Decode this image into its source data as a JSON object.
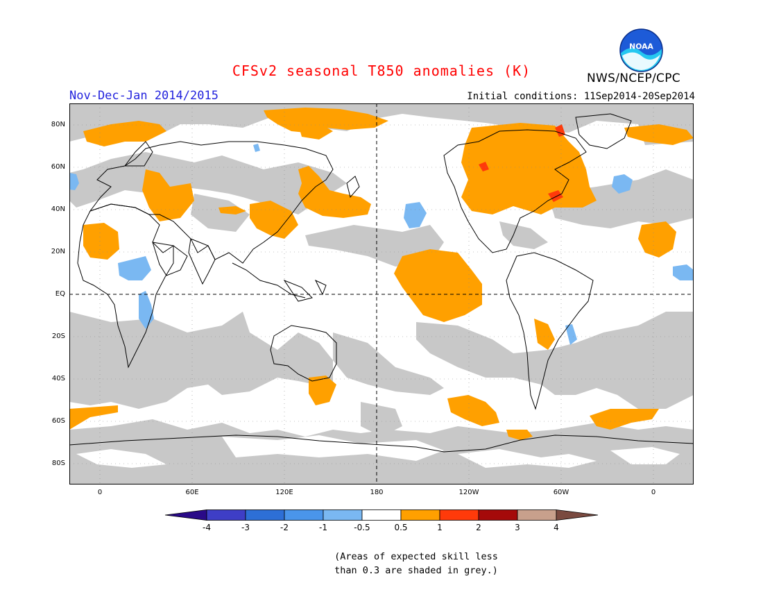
{
  "title": "CFSv2 seasonal T850 anomalies (K)",
  "period": "Nov-Dec-Jan 2014/2015",
  "initial_conditions": "Initial conditions: 11Sep2014-20Sep2014",
  "agency": "NWS/NCEP/CPC",
  "logo_text": "NOAA",
  "lat_labels": [
    "80N",
    "60N",
    "40N",
    "20N",
    "EQ",
    "20S",
    "40S",
    "60S",
    "80S"
  ],
  "lon_labels": [
    "0",
    "60E",
    "120E",
    "180",
    "120W",
    "60W",
    "0"
  ],
  "legend": {
    "ticks": [
      "-4",
      "-3",
      "-2",
      "-1",
      "-0.5",
      "0.5",
      "1",
      "2",
      "3",
      "4"
    ],
    "colors": [
      "#2a0a88",
      "#3e3ec6",
      "#2d6fd6",
      "#4a95ea",
      "#7ab8f2",
      "#ffffff",
      "#ffa000",
      "#ff3a0a",
      "#a50a0a",
      "#c8a08c",
      "#7a4a40"
    ]
  },
  "map_colors": {
    "grey_low_skill": "#c8c8c8",
    "warm_0_5_to_1": "#ffa000",
    "warm_1_to_2": "#ff3a0a",
    "cool_minus_0_5_to_minus_1": "#7ab8f2",
    "cool_minus_1_to_minus_2": "#4a95ea"
  },
  "note_line1": "(Areas of expected skill less",
  "note_line2": "than 0.3 are shaded in grey.)"
}
